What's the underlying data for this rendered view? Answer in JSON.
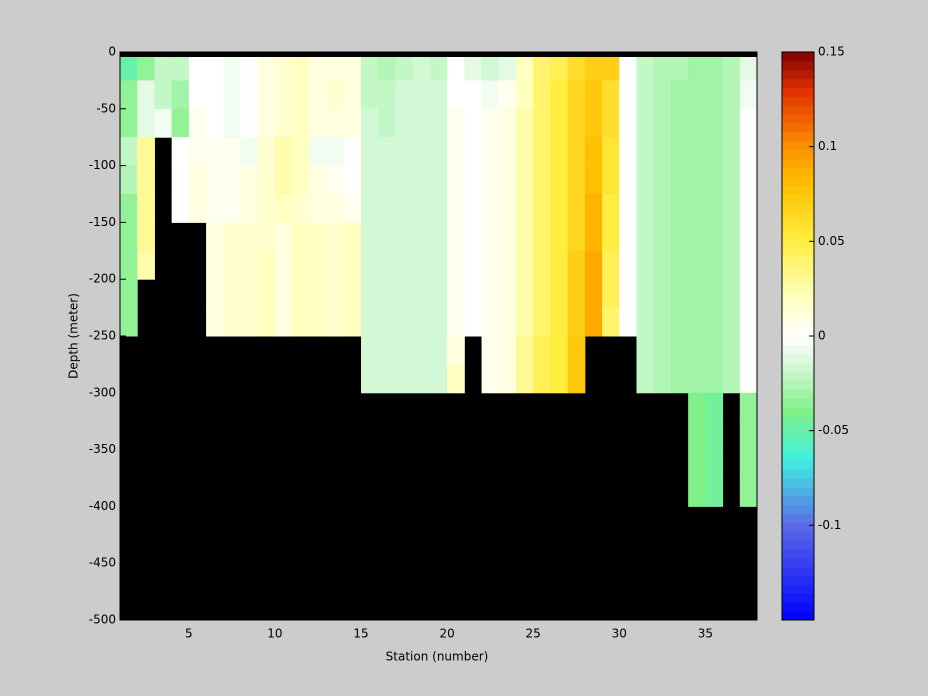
{
  "chart_data": {
    "type": "heatmap",
    "xlabel": "Station (number)",
    "ylabel": "Depth (meter)",
    "xlim": [
      1,
      38
    ],
    "ylim": [
      -500,
      0
    ],
    "xticks": [
      5,
      10,
      15,
      20,
      25,
      30,
      35
    ],
    "yticks": [
      0,
      -50,
      -100,
      -150,
      -200,
      -250,
      -300,
      -350,
      -400,
      -450,
      -500
    ],
    "stations": [
      1,
      2,
      3,
      4,
      5,
      6,
      7,
      8,
      9,
      10,
      11,
      12,
      13,
      14,
      15,
      16,
      17,
      18,
      19,
      20,
      21,
      22,
      23,
      24,
      25,
      26,
      27,
      28,
      29,
      30,
      31,
      32,
      33,
      34,
      35,
      36,
      37
    ],
    "depths": [
      0,
      -25,
      -50,
      -75,
      -100,
      -125,
      -150,
      -175,
      -200,
      -225,
      -250,
      -275,
      -300,
      -325,
      -350,
      -375,
      -400,
      -425,
      -450,
      -475
    ],
    "nan_color": "#000000",
    "clim": [
      -0.15,
      0.15
    ],
    "colorbar_ticks": [
      0.15,
      0.1,
      0.05,
      0,
      -0.05,
      -0.1
    ],
    "colormap": [
      {
        "value": -0.15,
        "color": "#0000ff"
      },
      {
        "value": -0.1,
        "color": "#5a6ae8"
      },
      {
        "value": -0.065,
        "color": "#40f0e0"
      },
      {
        "value": -0.04,
        "color": "#80f088"
      },
      {
        "value": -0.01,
        "color": "#e4fae4"
      },
      {
        "value": 0,
        "color": "#ffffff"
      },
      {
        "value": 0.02,
        "color": "#ffffc0"
      },
      {
        "value": 0.05,
        "color": "#ffee40"
      },
      {
        "value": 0.08,
        "color": "#ffc000"
      },
      {
        "value": 0.1,
        "color": "#ff9000"
      },
      {
        "value": 0.13,
        "color": "#e03000"
      },
      {
        "value": 0.15,
        "color": "#800000"
      }
    ],
    "z": [
      [
        -0.05,
        -0.035,
        -0.035,
        -0.02,
        -0.025,
        -0.035,
        -0.035,
        -0.035,
        -0.035,
        -0.035,
        null,
        null,
        null,
        null,
        null,
        null,
        null,
        null,
        null,
        null
      ],
      [
        -0.035,
        -0.01,
        -0.01,
        0.03,
        0.03,
        0.03,
        0.03,
        0.025,
        null,
        null,
        null,
        null,
        null,
        null,
        null,
        null,
        null,
        null,
        null,
        null
      ],
      [
        -0.02,
        -0.02,
        -0.005,
        null,
        null,
        null,
        null,
        null,
        null,
        null,
        null,
        null,
        null,
        null,
        null,
        null,
        null,
        null,
        null,
        null
      ],
      [
        -0.02,
        -0.03,
        -0.035,
        0,
        0,
        0,
        null,
        null,
        null,
        null,
        null,
        null,
        null,
        null,
        null,
        null,
        null,
        null,
        null,
        null
      ],
      [
        0,
        0,
        0.005,
        0.005,
        0.01,
        0.01,
        null,
        null,
        null,
        null,
        null,
        null,
        null,
        null,
        null,
        null,
        null,
        null,
        null,
        null
      ],
      [
        0,
        0,
        0,
        0.005,
        0.005,
        0.005,
        0.01,
        0.01,
        0.01,
        0.01,
        null,
        null,
        null,
        null,
        null,
        null,
        null,
        null,
        null,
        null
      ],
      [
        -0.005,
        -0.005,
        -0.005,
        0.005,
        0.005,
        0.005,
        0.015,
        0.015,
        0.015,
        0.015,
        null,
        null,
        null,
        null,
        null,
        null,
        null,
        null,
        null,
        null
      ],
      [
        0,
        0,
        0,
        -0.005,
        0.01,
        0.01,
        0.015,
        0.015,
        0.015,
        0.015,
        null,
        null,
        null,
        null,
        null,
        null,
        null,
        null,
        null,
        null
      ],
      [
        0.01,
        0.01,
        0.01,
        0.015,
        0.015,
        0.015,
        0.015,
        0.02,
        0.02,
        0.02,
        null,
        null,
        null,
        null,
        null,
        null,
        null,
        null,
        null,
        null
      ],
      [
        0.015,
        0.015,
        0.015,
        0.025,
        0.025,
        0.02,
        0.01,
        0.01,
        0.01,
        0.01,
        null,
        null,
        null,
        null,
        null,
        null,
        null,
        null,
        null,
        null
      ],
      [
        0.02,
        0.02,
        0.02,
        0.02,
        0.02,
        0.015,
        0.02,
        0.02,
        0.02,
        0.02,
        null,
        null,
        null,
        null,
        null,
        null,
        null,
        null,
        null,
        null
      ],
      [
        0.01,
        0.01,
        0.01,
        -0.005,
        0.01,
        0.01,
        0.02,
        0.02,
        0.02,
        0.02,
        null,
        null,
        null,
        null,
        null,
        null,
        null,
        null,
        null,
        null
      ],
      [
        0.01,
        0.015,
        0.01,
        -0.005,
        0.005,
        0.01,
        0.015,
        0.015,
        0.015,
        0.015,
        null,
        null,
        null,
        null,
        null,
        null,
        null,
        null,
        null,
        null
      ],
      [
        0.01,
        0.01,
        0.01,
        0,
        0,
        0.005,
        0.02,
        0.02,
        0.02,
        0.02,
        null,
        null,
        null,
        null,
        null,
        null,
        null,
        null,
        null,
        null
      ],
      [
        -0.02,
        -0.02,
        -0.015,
        -0.015,
        -0.015,
        -0.015,
        -0.015,
        -0.015,
        -0.015,
        -0.015,
        -0.015,
        -0.015,
        null,
        null,
        null,
        null,
        null,
        null,
        null,
        null
      ],
      [
        -0.025,
        -0.02,
        -0.02,
        -0.015,
        -0.015,
        -0.015,
        -0.015,
        -0.015,
        -0.015,
        -0.015,
        -0.015,
        -0.015,
        null,
        null,
        null,
        null,
        null,
        null,
        null,
        null
      ],
      [
        -0.02,
        -0.015,
        -0.015,
        -0.015,
        -0.015,
        -0.015,
        -0.015,
        -0.015,
        -0.015,
        -0.015,
        -0.015,
        -0.015,
        null,
        null,
        null,
        null,
        null,
        null,
        null,
        null
      ],
      [
        -0.015,
        -0.015,
        -0.015,
        -0.015,
        -0.015,
        -0.015,
        -0.015,
        -0.015,
        -0.015,
        -0.015,
        -0.015,
        -0.015,
        null,
        null,
        null,
        null,
        null,
        null,
        null,
        null
      ],
      [
        -0.02,
        -0.015,
        -0.015,
        -0.015,
        -0.015,
        -0.015,
        -0.015,
        -0.015,
        -0.015,
        -0.015,
        -0.015,
        -0.015,
        null,
        null,
        null,
        null,
        null,
        null,
        null,
        null
      ],
      [
        0,
        0,
        0.005,
        0.005,
        0.005,
        0.005,
        0.005,
        0.005,
        0.005,
        0.005,
        0.01,
        0.02,
        null,
        null,
        null,
        null,
        null,
        null,
        null,
        null
      ],
      [
        -0.01,
        0,
        0,
        0,
        0,
        0,
        0,
        0,
        0,
        0,
        null,
        null,
        null,
        null,
        null,
        null,
        null,
        null,
        null,
        null
      ],
      [
        -0.015,
        -0.005,
        0.005,
        0.005,
        0.005,
        0.005,
        0.005,
        0.005,
        0.005,
        0.005,
        0.005,
        0.005,
        null,
        null,
        null,
        null,
        null,
        null,
        null,
        null
      ],
      [
        -0.01,
        0.005,
        0.01,
        0.01,
        0.01,
        0.01,
        0.01,
        0.01,
        0.01,
        0.01,
        0.01,
        0.01,
        null,
        null,
        null,
        null,
        null,
        null,
        null,
        null
      ],
      [
        0.02,
        0.02,
        0.025,
        0.025,
        0.025,
        0.025,
        0.025,
        0.025,
        0.025,
        0.025,
        0.03,
        0.03,
        null,
        null,
        null,
        null,
        null,
        null,
        null,
        null
      ],
      [
        0.04,
        0.04,
        0.04,
        0.04,
        0.04,
        0.04,
        0.04,
        0.04,
        0.04,
        0.04,
        0.045,
        0.045,
        null,
        null,
        null,
        null,
        null,
        null,
        null,
        null
      ],
      [
        0.045,
        0.05,
        0.05,
        0.05,
        0.05,
        0.05,
        0.05,
        0.05,
        0.05,
        0.05,
        0.05,
        0.05,
        null,
        null,
        null,
        null,
        null,
        null,
        null,
        null
      ],
      [
        0.06,
        0.065,
        0.065,
        0.065,
        0.065,
        0.065,
        0.065,
        0.07,
        0.07,
        0.07,
        0.075,
        0.075,
        null,
        null,
        null,
        null,
        null,
        null,
        null,
        null
      ],
      [
        0.07,
        0.075,
        0.075,
        0.08,
        0.08,
        0.085,
        0.085,
        0.09,
        0.09,
        0.09,
        null,
        null,
        null,
        null,
        null,
        null,
        null,
        null,
        null,
        null
      ],
      [
        0.07,
        0.06,
        0.06,
        0.055,
        0.055,
        0.05,
        0.05,
        0.045,
        0.045,
        0.04,
        null,
        null,
        null,
        null,
        null,
        null,
        null,
        null,
        null,
        null
      ],
      [
        0,
        0,
        0,
        0,
        0,
        0,
        0,
        0,
        0,
        0,
        null,
        null,
        null,
        null,
        null,
        null,
        null,
        null,
        null,
        null
      ],
      [
        -0.02,
        -0.02,
        -0.02,
        -0.02,
        -0.02,
        -0.02,
        -0.02,
        -0.02,
        -0.02,
        -0.02,
        -0.02,
        -0.02,
        null,
        null,
        null,
        null,
        null,
        null,
        null,
        null
      ],
      [
        -0.025,
        -0.025,
        -0.025,
        -0.025,
        -0.025,
        -0.025,
        -0.025,
        -0.025,
        -0.025,
        -0.025,
        -0.025,
        -0.025,
        null,
        null,
        null,
        null,
        null,
        null,
        null,
        null
      ],
      [
        -0.025,
        -0.03,
        -0.03,
        -0.03,
        -0.03,
        -0.03,
        -0.03,
        -0.03,
        -0.03,
        -0.03,
        -0.03,
        -0.03,
        null,
        null,
        null,
        null,
        null,
        null,
        null,
        null
      ],
      [
        -0.03,
        -0.03,
        -0.03,
        -0.03,
        -0.03,
        -0.03,
        -0.03,
        -0.03,
        -0.03,
        -0.03,
        -0.03,
        -0.03,
        -0.04,
        -0.04,
        -0.04,
        -0.04,
        null,
        null,
        null,
        null
      ],
      [
        -0.03,
        -0.03,
        -0.03,
        -0.03,
        -0.03,
        -0.03,
        -0.03,
        -0.03,
        -0.03,
        -0.03,
        -0.03,
        -0.03,
        -0.045,
        -0.045,
        -0.045,
        -0.045,
        null,
        null,
        null,
        null
      ],
      [
        -0.025,
        -0.025,
        -0.025,
        -0.025,
        -0.025,
        -0.025,
        -0.025,
        -0.025,
        -0.025,
        -0.025,
        -0.025,
        -0.025,
        null,
        null,
        null,
        null,
        null,
        null,
        null,
        null
      ],
      [
        -0.01,
        -0.005,
        0,
        0,
        0,
        0,
        0,
        0,
        0,
        0,
        0,
        0,
        -0.035,
        -0.035,
        -0.035,
        -0.035,
        null,
        null,
        null,
        null
      ]
    ]
  }
}
